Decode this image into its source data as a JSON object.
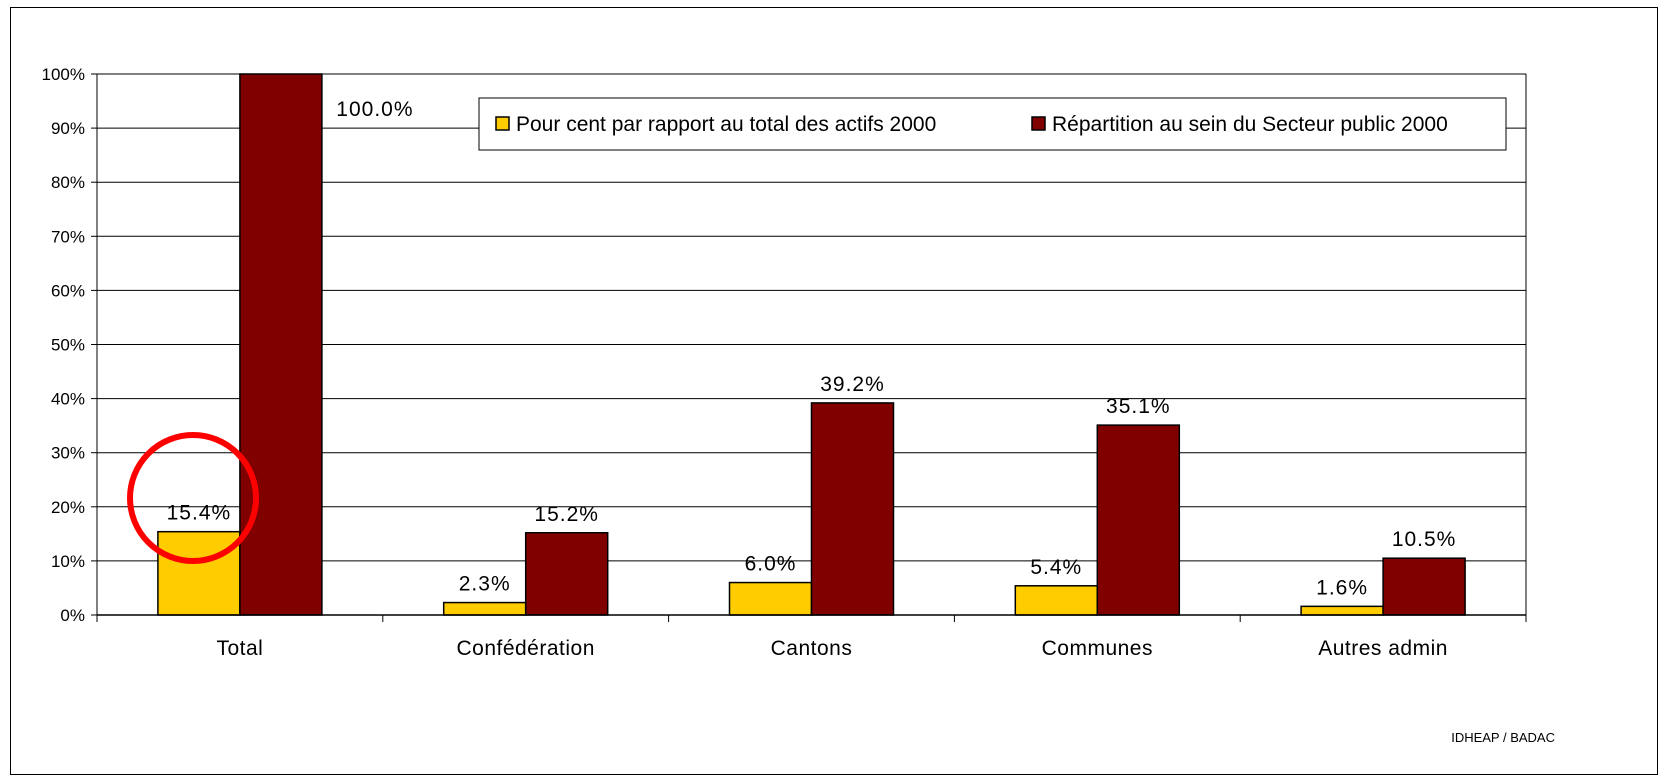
{
  "chart_data": {
    "type": "bar",
    "title": "",
    "xlabel": "",
    "ylabel": "",
    "ylim": [
      0,
      100
    ],
    "yticks": [
      "0%",
      "10%",
      "20%",
      "30%",
      "40%",
      "50%",
      "60%",
      "70%",
      "80%",
      "90%",
      "100%"
    ],
    "categories": [
      "Total",
      "Confédération",
      "Cantons",
      "Communes",
      "Autres admin"
    ],
    "series": [
      {
        "name": "Pour cent par rapport au total des actifs 2000",
        "color": "#FFCC00",
        "values": [
          15.4,
          2.3,
          6.0,
          5.4,
          1.6
        ],
        "labels": [
          "15.4%",
          "2.3%",
          "6.0%",
          "5.4%",
          "1.6%"
        ]
      },
      {
        "name": "Répartition au sein du Secteur public 2000",
        "color": "#800000",
        "values": [
          100.0,
          15.2,
          39.2,
          35.1,
          10.5
        ],
        "labels": [
          "100.0%",
          "15.2%",
          "39.2%",
          "35.1%",
          "10.5%"
        ]
      }
    ],
    "grid": true,
    "legend_position": "top-right",
    "annotations": [
      {
        "type": "circle",
        "color": "#FF0000",
        "target": "Total / 15.4%"
      }
    ],
    "source": "IDHEAP / BADAC"
  }
}
